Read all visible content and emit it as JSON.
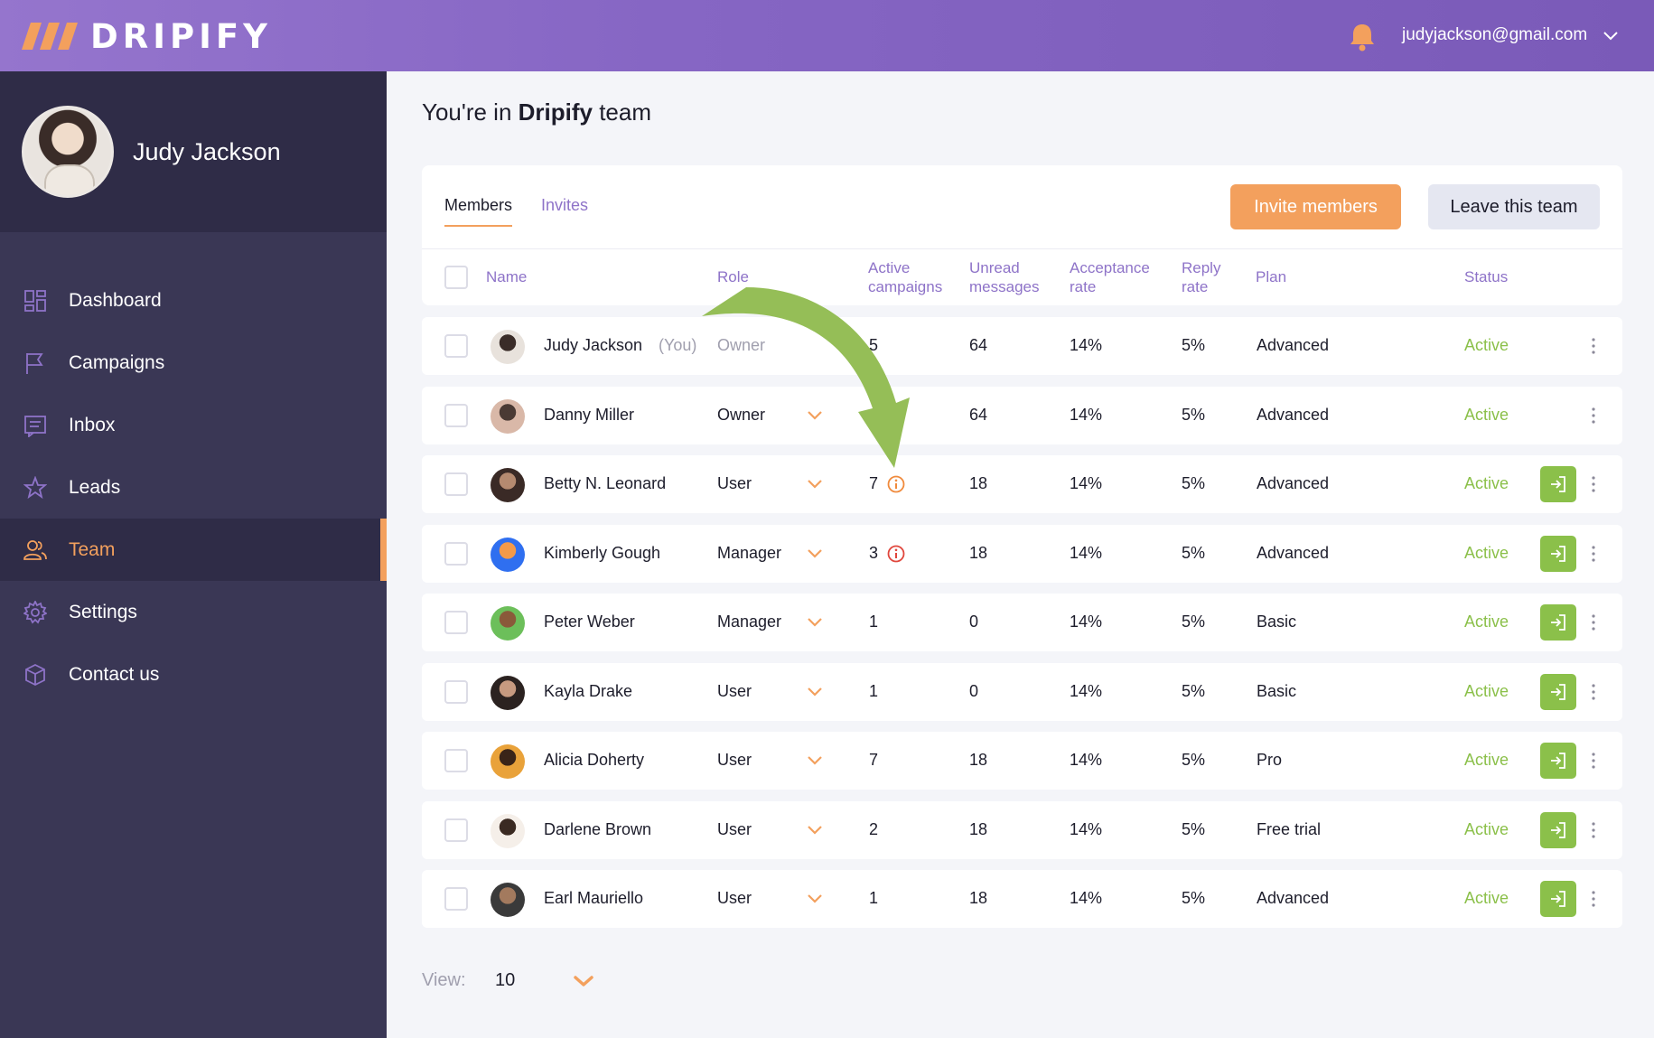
{
  "brand": {
    "name": "DRIPIFY",
    "accent": "#f3a05d",
    "purple": "#8e73c8",
    "green": "#8bc04a"
  },
  "header": {
    "user_email": "judyjackson@gmail.com",
    "bell_icon": "bell-icon"
  },
  "sidebar": {
    "profile_name": "Judy Jackson",
    "items": [
      {
        "label": "Dashboard",
        "icon": "dashboard-icon",
        "active": false
      },
      {
        "label": "Campaigns",
        "icon": "flag-icon",
        "active": false
      },
      {
        "label": "Inbox",
        "icon": "inbox-icon",
        "active": false
      },
      {
        "label": "Leads",
        "icon": "star-icon",
        "active": false
      },
      {
        "label": "Team",
        "icon": "users-icon",
        "active": true
      },
      {
        "label": "Settings",
        "icon": "gear-icon",
        "active": false
      },
      {
        "label": "Contact us",
        "icon": "hexagon-icon",
        "active": false
      }
    ]
  },
  "page": {
    "title_prefix": "You're in ",
    "team_name": "Dripify",
    "title_suffix": " team"
  },
  "tabs": {
    "members": "Members",
    "invites": "Invites"
  },
  "actions": {
    "invite": "Invite members",
    "leave": "Leave this team"
  },
  "table": {
    "headers": {
      "name": "Name",
      "role": "Role",
      "active_campaigns_1": "Active",
      "active_campaigns_2": "campaigns",
      "unread_1": "Unread",
      "unread_2": "messages",
      "acceptance_1": "Acceptance",
      "acceptance_2": "rate",
      "reply_1": "Reply",
      "reply_2": "rate",
      "plan": "Plan",
      "status": "Status"
    },
    "rows": [
      {
        "name": "Judy Jackson",
        "you": "(You)",
        "role": "Owner",
        "role_editable": false,
        "campaigns": "5",
        "campaign_warning": null,
        "unread": "64",
        "acceptance": "14%",
        "reply": "5%",
        "plan": "Advanced",
        "status": "Active",
        "login_button": false
      },
      {
        "name": "Danny Miller",
        "you": "",
        "role": "Owner",
        "role_editable": true,
        "campaigns": "",
        "campaign_warning": null,
        "unread": "64",
        "acceptance": "14%",
        "reply": "5%",
        "plan": "Advanced",
        "status": "Active",
        "login_button": false
      },
      {
        "name": "Betty N. Leonard",
        "you": "",
        "role": "User",
        "role_editable": true,
        "campaigns": "7",
        "campaign_warning": "orange",
        "unread": "18",
        "acceptance": "14%",
        "reply": "5%",
        "plan": "Advanced",
        "status": "Active",
        "login_button": true
      },
      {
        "name": "Kimberly Gough",
        "you": "",
        "role": "Manager",
        "role_editable": true,
        "campaigns": "3",
        "campaign_warning": "red",
        "unread": "18",
        "acceptance": "14%",
        "reply": "5%",
        "plan": "Advanced",
        "status": "Active",
        "login_button": true
      },
      {
        "name": "Peter Weber",
        "you": "",
        "role": "Manager",
        "role_editable": true,
        "campaigns": "1",
        "campaign_warning": null,
        "unread": "0",
        "acceptance": "14%",
        "reply": "5%",
        "plan": "Basic",
        "status": "Active",
        "login_button": true
      },
      {
        "name": "Kayla Drake",
        "you": "",
        "role": "User",
        "role_editable": true,
        "campaigns": "1",
        "campaign_warning": null,
        "unread": "0",
        "acceptance": "14%",
        "reply": "5%",
        "plan": "Basic",
        "status": "Active",
        "login_button": true
      },
      {
        "name": "Alicia Doherty",
        "you": "",
        "role": "User",
        "role_editable": true,
        "campaigns": "7",
        "campaign_warning": null,
        "unread": "18",
        "acceptance": "14%",
        "reply": "5%",
        "plan": "Pro",
        "status": "Active",
        "login_button": true
      },
      {
        "name": "Darlene Brown",
        "you": "",
        "role": "User",
        "role_editable": true,
        "campaigns": "2",
        "campaign_warning": null,
        "unread": "18",
        "acceptance": "14%",
        "reply": "5%",
        "plan": "Free trial",
        "status": "Active",
        "login_button": true
      },
      {
        "name": "Earl Mauriello",
        "you": "",
        "role": "User",
        "role_editable": true,
        "campaigns": "1",
        "campaign_warning": null,
        "unread": "18",
        "acceptance": "14%",
        "reply": "5%",
        "plan": "Advanced",
        "status": "Active",
        "login_button": true
      }
    ]
  },
  "pagination": {
    "view_label": "View:",
    "view_value": "10"
  }
}
